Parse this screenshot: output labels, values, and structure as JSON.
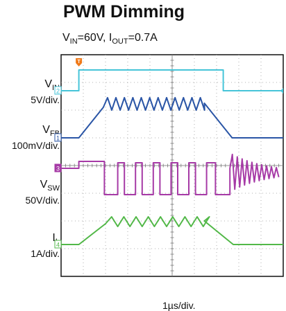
{
  "chart_data": {
    "type": "line",
    "title": "PWM Dimming",
    "subtitle": {
      "v_name": "V",
      "v_sub": "IN",
      "v_value": "=60V, ",
      "i_name": "I",
      "i_sub": "OUT",
      "i_value": "=0.7A"
    },
    "x_scale": "1µs/div.",
    "divisions": {
      "x": 10,
      "y": 8
    },
    "trigger_marker": "T",
    "channels": [
      {
        "id": "vin",
        "number": "2",
        "name": "V",
        "sub": "IN",
        "scale": "5V/div.",
        "color": "#45c4d8"
      },
      {
        "id": "vfb",
        "number": "1",
        "name": "V",
        "sub": "FB",
        "scale": "100mV/div.",
        "color": "#2a55a6"
      },
      {
        "id": "vsw",
        "number": "3",
        "name": "V",
        "sub": "SW",
        "scale": "50V/div.",
        "color": "#a63aa6"
      },
      {
        "id": "il",
        "number": "4",
        "name": "I",
        "sub": "L",
        "scale": "1A/div.",
        "color": "#52b848"
      }
    ],
    "pwm_window_div": [
      0.8,
      7.3
    ],
    "grid": true
  }
}
